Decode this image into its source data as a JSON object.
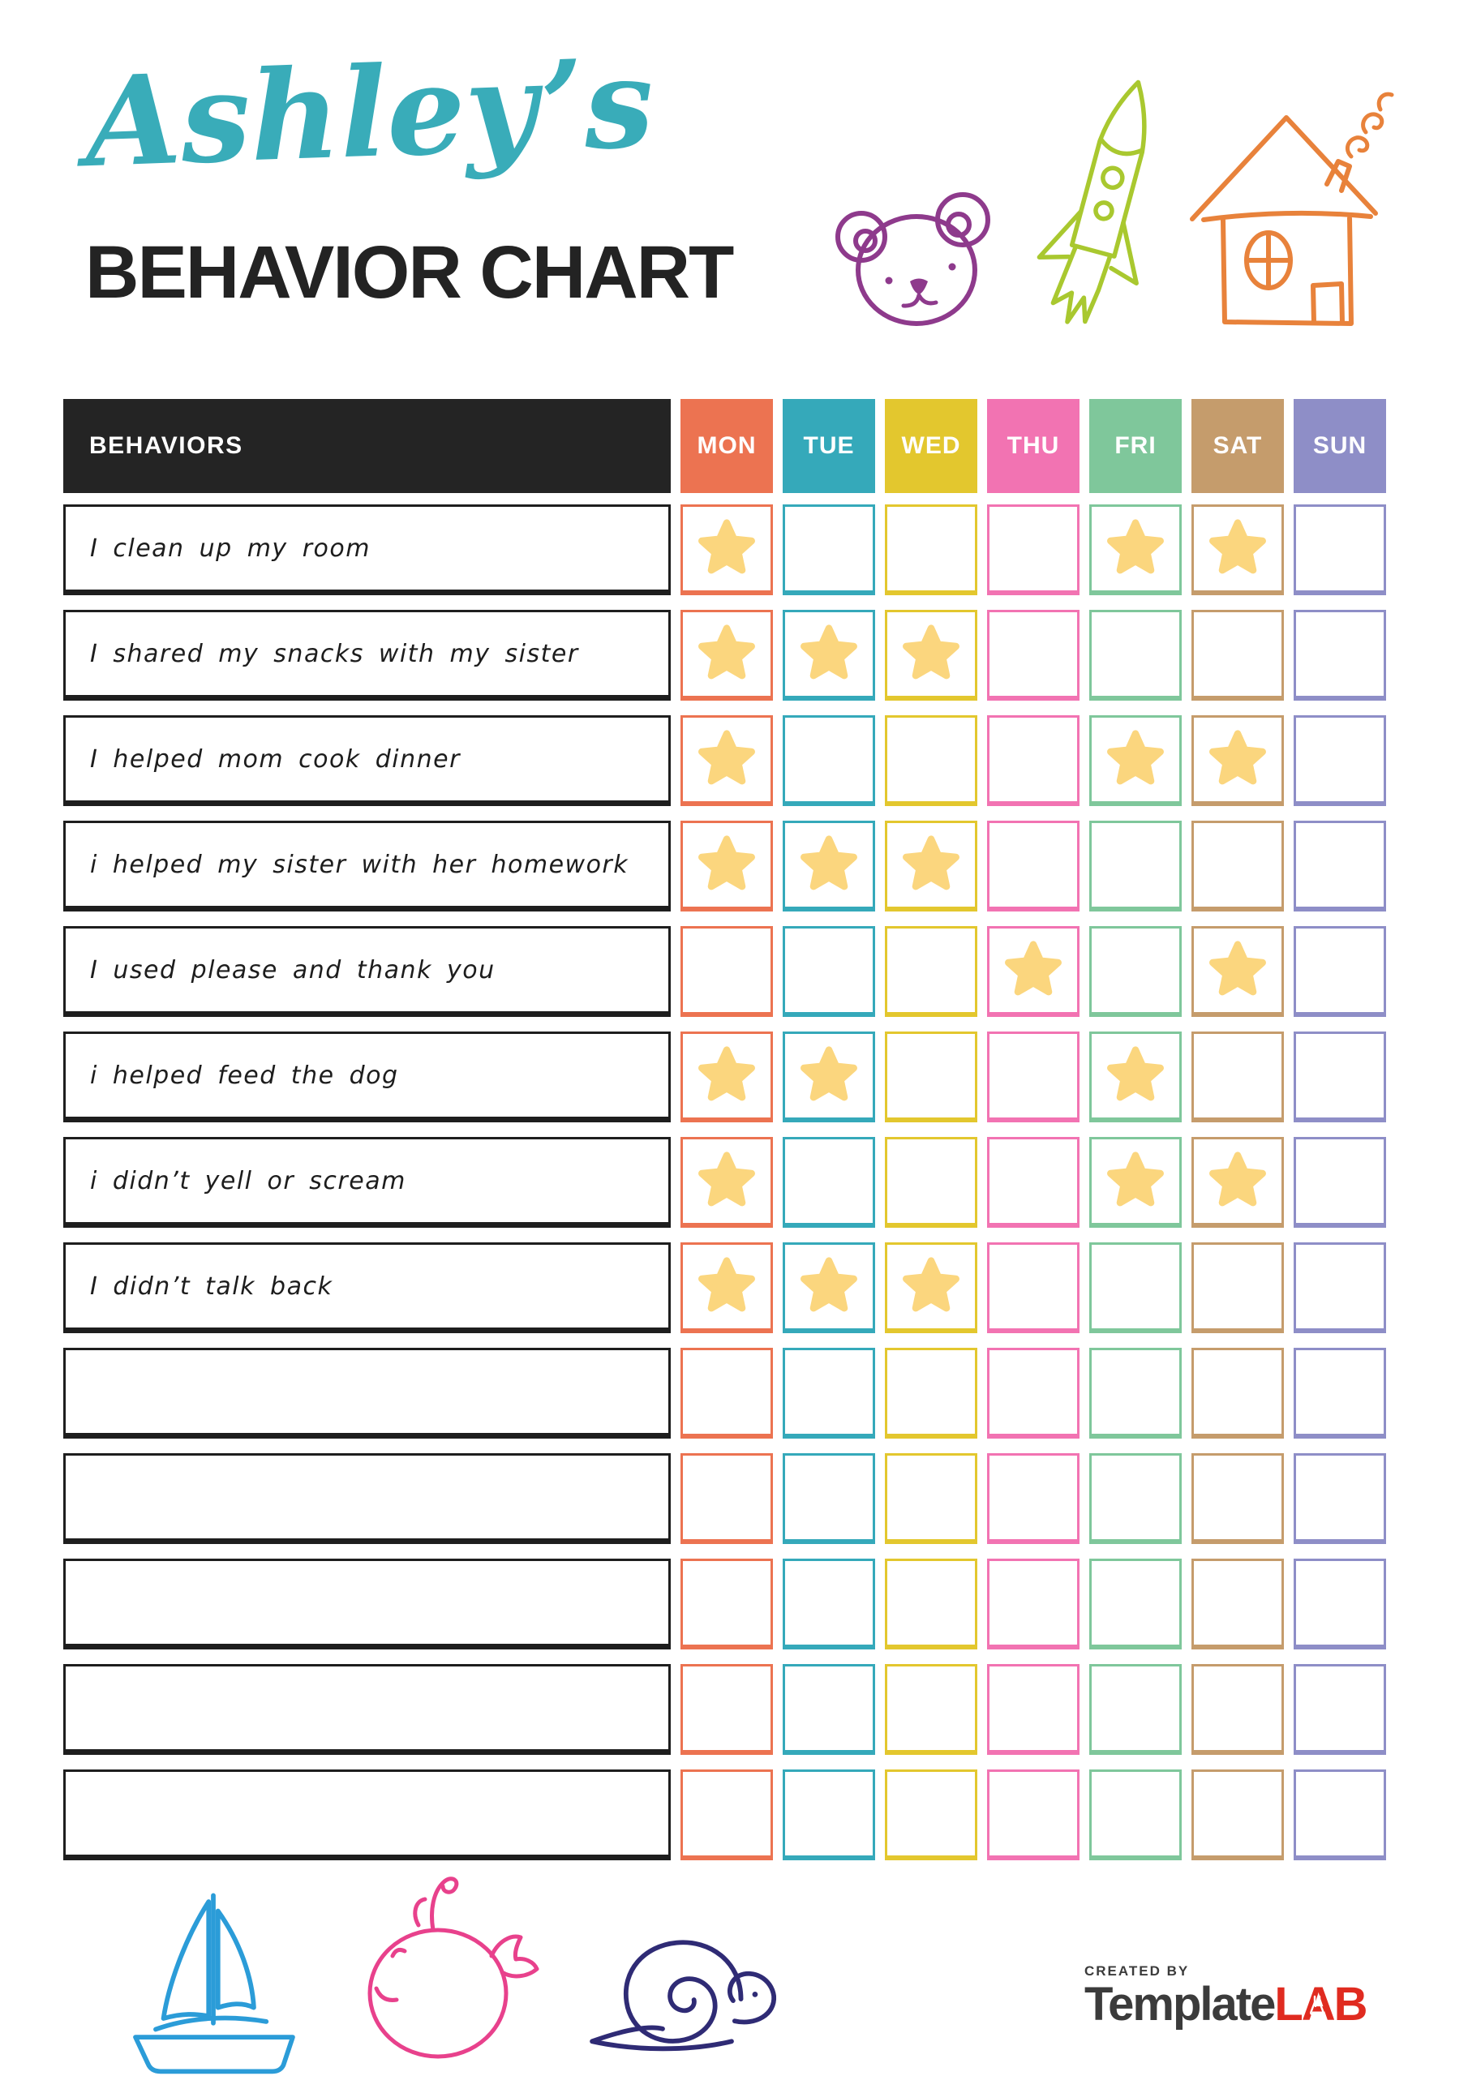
{
  "header": {
    "name": "Ashley’s",
    "title": "BEHAVIOR CHART",
    "name_color": "#39ACB9",
    "title_color": "#232323"
  },
  "top_doodles": [
    {
      "icon": "bear",
      "color": "#8E3A8C"
    },
    {
      "icon": "rocket",
      "color": "#A9C82F"
    },
    {
      "icon": "house",
      "color": "#E8823B"
    }
  ],
  "table": {
    "behaviors_header": "BEHAVIORS",
    "header_bg": "#242424",
    "row_border": "#1E1E1E",
    "star_color": "#FBD67E",
    "days": [
      {
        "label": "MON",
        "color": "#EC7351"
      },
      {
        "label": "TUE",
        "color": "#35A9BA"
      },
      {
        "label": "WED",
        "color": "#E3C72E"
      },
      {
        "label": "THU",
        "color": "#F273B2"
      },
      {
        "label": "FRI",
        "color": "#7FC79B"
      },
      {
        "label": "SAT",
        "color": "#C59C6C"
      },
      {
        "label": "SUN",
        "color": "#8E8EC7"
      }
    ],
    "rows": [
      {
        "label": "I clean up my room",
        "stars": [
          "MON",
          "FRI",
          "SAT"
        ]
      },
      {
        "label": "I shared my snacks with my sister",
        "stars": [
          "MON",
          "TUE",
          "WED"
        ]
      },
      {
        "label": "I helped mom cook dinner",
        "stars": [
          "MON",
          "FRI",
          "SAT"
        ]
      },
      {
        "label": "i helped my sister with her homework",
        "stars": [
          "MON",
          "TUE",
          "WED"
        ]
      },
      {
        "label": "I used please and thank you",
        "stars": [
          "THU",
          "SAT"
        ]
      },
      {
        "label": "i helped feed the dog",
        "stars": [
          "MON",
          "TUE",
          "FRI"
        ]
      },
      {
        "label": "i didn’t yell or scream",
        "stars": [
          "MON",
          "FRI",
          "SAT"
        ]
      },
      {
        "label": "I didn’t talk back",
        "stars": [
          "MON",
          "TUE",
          "WED"
        ]
      },
      {
        "label": "",
        "stars": []
      },
      {
        "label": "",
        "stars": []
      },
      {
        "label": "",
        "stars": []
      },
      {
        "label": "",
        "stars": []
      },
      {
        "label": "",
        "stars": []
      }
    ]
  },
  "bottom_doodles": [
    {
      "icon": "sailboat",
      "color": "#2B9CD8"
    },
    {
      "icon": "whale",
      "color": "#E8418C"
    },
    {
      "icon": "snail",
      "color": "#2F2B75"
    }
  ],
  "footer_brand": {
    "created_by": "CREATED BY",
    "brand_left": "Template",
    "brand_right": "LAB",
    "left_color": "#3B3B3B",
    "right_color": "#E02B20"
  }
}
